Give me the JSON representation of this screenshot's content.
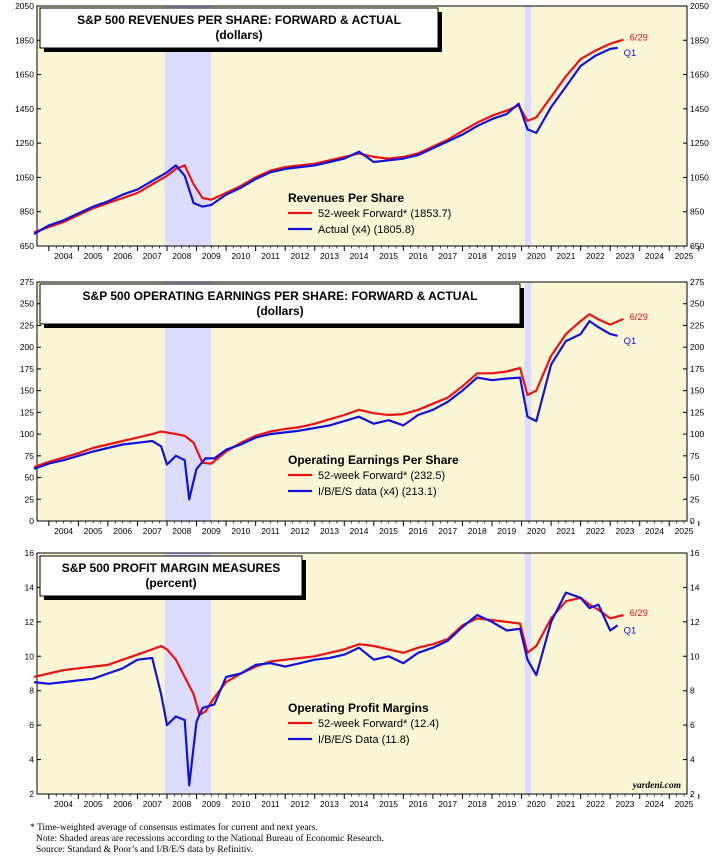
{
  "chart_data": [
    {
      "type": "line",
      "title": "S&P 500 REVENUES PER SHARE: FORWARD & ACTUAL",
      "subtitle": "(dollars)",
      "legend_title": "Revenues Per Share",
      "ylim": [
        650,
        2050
      ],
      "yticks": [
        650,
        850,
        1050,
        1250,
        1450,
        1650,
        1850,
        2050
      ],
      "recessions": [
        [
          2007.92,
          2009.5
        ],
        [
          2020.1,
          2020.33
        ]
      ],
      "end_label_top": "6/29",
      "end_label_bottom": "Q1",
      "series": [
        {
          "name": "52-week Forward* (1853.7)",
          "color": "#ee1111",
          "x": [
            2003.5,
            2004.0,
            2004.5,
            2005.0,
            2005.5,
            2006.0,
            2006.5,
            2007.0,
            2007.5,
            2008.0,
            2008.3,
            2008.6,
            2008.9,
            2009.2,
            2009.5,
            2010.0,
            2010.5,
            2011.0,
            2011.5,
            2012.0,
            2012.5,
            2013.0,
            2013.5,
            2014.0,
            2014.5,
            2015.0,
            2015.5,
            2016.0,
            2016.5,
            2017.0,
            2017.5,
            2018.0,
            2018.5,
            2019.0,
            2019.5,
            2019.9,
            2020.2,
            2020.5,
            2021.0,
            2021.5,
            2022.0,
            2022.5,
            2023.0,
            2023.45
          ],
          "values": [
            730,
            760,
            790,
            830,
            870,
            900,
            930,
            960,
            1010,
            1060,
            1100,
            1120,
            1010,
            930,
            920,
            960,
            1000,
            1050,
            1090,
            1110,
            1120,
            1130,
            1150,
            1170,
            1190,
            1170,
            1160,
            1170,
            1190,
            1230,
            1270,
            1320,
            1370,
            1410,
            1440,
            1470,
            1380,
            1400,
            1520,
            1640,
            1740,
            1790,
            1830,
            1853.7
          ]
        },
        {
          "name": "Actual (x4) (1805.8)",
          "color": "#1111dd",
          "x": [
            2003.5,
            2004.0,
            2004.5,
            2005.0,
            2005.5,
            2006.0,
            2006.5,
            2007.0,
            2007.5,
            2008.0,
            2008.3,
            2008.6,
            2008.9,
            2009.2,
            2009.5,
            2010.0,
            2010.5,
            2011.0,
            2011.5,
            2012.0,
            2012.5,
            2013.0,
            2013.5,
            2014.0,
            2014.5,
            2015.0,
            2015.5,
            2016.0,
            2016.5,
            2017.0,
            2017.5,
            2018.0,
            2018.5,
            2019.0,
            2019.5,
            2019.9,
            2020.2,
            2020.5,
            2021.0,
            2021.5,
            2022.0,
            2022.5,
            2023.0,
            2023.25
          ],
          "values": [
            720,
            770,
            800,
            840,
            880,
            910,
            950,
            980,
            1030,
            1080,
            1120,
            1060,
            900,
            880,
            890,
            950,
            990,
            1040,
            1080,
            1100,
            1110,
            1120,
            1140,
            1160,
            1200,
            1140,
            1150,
            1160,
            1180,
            1220,
            1260,
            1300,
            1350,
            1390,
            1420,
            1480,
            1330,
            1310,
            1460,
            1580,
            1700,
            1760,
            1800,
            1805.8
          ]
        }
      ]
    },
    {
      "type": "line",
      "title": "S&P 500 OPERATING EARNINGS PER SHARE: FORWARD & ACTUAL",
      "subtitle": "(dollars)",
      "legend_title": "Operating Earnings Per Share",
      "ylim": [
        0,
        275
      ],
      "yticks": [
        0,
        25,
        50,
        75,
        100,
        125,
        150,
        175,
        200,
        225,
        250,
        275
      ],
      "recessions": [
        [
          2007.92,
          2009.5
        ],
        [
          2020.1,
          2020.33
        ]
      ],
      "end_label_top": "6/29",
      "end_label_bottom": "Q1",
      "series": [
        {
          "name": "52-week Forward* (232.5)",
          "color": "#ee1111",
          "x": [
            2003.5,
            2004.0,
            2004.5,
            2005.0,
            2005.5,
            2006.0,
            2006.5,
            2007.0,
            2007.5,
            2007.8,
            2008.0,
            2008.3,
            2008.6,
            2008.9,
            2009.2,
            2009.5,
            2010.0,
            2010.5,
            2011.0,
            2011.5,
            2012.0,
            2012.5,
            2013.0,
            2013.5,
            2014.0,
            2014.5,
            2015.0,
            2015.5,
            2016.0,
            2016.5,
            2017.0,
            2017.5,
            2018.0,
            2018.5,
            2019.0,
            2019.5,
            2019.95,
            2020.2,
            2020.5,
            2021.0,
            2021.5,
            2022.0,
            2022.3,
            2022.6,
            2023.0,
            2023.45
          ],
          "values": [
            62,
            68,
            73,
            78,
            84,
            88,
            92,
            96,
            100,
            103,
            102,
            100,
            98,
            90,
            67,
            66,
            80,
            90,
            98,
            103,
            106,
            108,
            112,
            117,
            122,
            128,
            124,
            122,
            123,
            128,
            135,
            142,
            155,
            170,
            170,
            172,
            176,
            145,
            150,
            190,
            215,
            230,
            238,
            232,
            226,
            232.5
          ]
        },
        {
          "name": "I/B/E/S data (x4) (213.1)",
          "color": "#1111dd",
          "x": [
            2003.5,
            2004.0,
            2004.5,
            2005.0,
            2005.5,
            2006.0,
            2006.5,
            2007.0,
            2007.5,
            2007.8,
            2008.0,
            2008.3,
            2008.6,
            2008.75,
            2009.0,
            2009.3,
            2009.6,
            2010.0,
            2010.5,
            2011.0,
            2011.5,
            2012.0,
            2012.5,
            2013.0,
            2013.5,
            2014.0,
            2014.5,
            2015.0,
            2015.5,
            2016.0,
            2016.5,
            2017.0,
            2017.5,
            2018.0,
            2018.5,
            2019.0,
            2019.5,
            2019.95,
            2020.2,
            2020.5,
            2021.0,
            2021.5,
            2022.0,
            2022.3,
            2022.6,
            2023.0,
            2023.25
          ],
          "values": [
            60,
            66,
            70,
            75,
            80,
            84,
            88,
            90,
            92,
            86,
            65,
            75,
            70,
            25,
            60,
            72,
            72,
            82,
            88,
            96,
            100,
            102,
            104,
            107,
            110,
            115,
            120,
            112,
            116,
            110,
            122,
            128,
            137,
            150,
            165,
            162,
            164,
            165,
            120,
            115,
            180,
            207,
            215,
            230,
            223,
            215,
            213.1
          ]
        }
      ]
    },
    {
      "type": "line",
      "title": "S&P 500 PROFIT MARGIN MEASURES",
      "subtitle": "(percent)",
      "legend_title": "Operating Profit Margins",
      "ylim": [
        2,
        16
      ],
      "yticks": [
        2,
        4,
        6,
        8,
        10,
        12,
        14,
        16
      ],
      "recessions": [
        [
          2007.92,
          2009.5
        ],
        [
          2020.1,
          2020.33
        ]
      ],
      "end_label_top": "6/29",
      "end_label_bottom": "Q1",
      "watermark": "yardeni.com",
      "series": [
        {
          "name": "52-week Forward* (12.4)",
          "color": "#ee1111",
          "x": [
            2003.5,
            2004.0,
            2004.5,
            2005.0,
            2005.5,
            2006.0,
            2006.5,
            2007.0,
            2007.5,
            2007.8,
            2008.0,
            2008.3,
            2008.6,
            2008.9,
            2009.1,
            2009.3,
            2009.6,
            2010.0,
            2010.5,
            2011.0,
            2011.5,
            2012.0,
            2012.5,
            2013.0,
            2013.5,
            2014.0,
            2014.5,
            2015.0,
            2015.5,
            2016.0,
            2016.5,
            2017.0,
            2017.5,
            2018.0,
            2018.5,
            2019.0,
            2019.5,
            2019.95,
            2020.2,
            2020.5,
            2021.0,
            2021.5,
            2022.0,
            2022.3,
            2022.6,
            2023.0,
            2023.45
          ],
          "values": [
            8.8,
            9.0,
            9.2,
            9.3,
            9.4,
            9.5,
            9.8,
            10.1,
            10.4,
            10.6,
            10.4,
            9.8,
            8.8,
            7.8,
            6.6,
            6.8,
            7.6,
            8.5,
            9.0,
            9.4,
            9.7,
            9.8,
            9.9,
            10.0,
            10.2,
            10.4,
            10.7,
            10.6,
            10.4,
            10.2,
            10.5,
            10.7,
            11.0,
            11.8,
            12.2,
            12.1,
            12.0,
            11.9,
            10.2,
            10.6,
            12.2,
            13.2,
            13.4,
            13.0,
            12.7,
            12.2,
            12.4
          ]
        },
        {
          "name": "I/B/E/S Data (11.8)",
          "color": "#1111dd",
          "x": [
            2003.5,
            2004.0,
            2004.5,
            2005.0,
            2005.5,
            2006.0,
            2006.5,
            2007.0,
            2007.5,
            2007.8,
            2008.0,
            2008.3,
            2008.6,
            2008.75,
            2009.0,
            2009.2,
            2009.6,
            2010.0,
            2010.5,
            2011.0,
            2011.5,
            2012.0,
            2012.5,
            2013.0,
            2013.5,
            2014.0,
            2014.5,
            2015.0,
            2015.5,
            2016.0,
            2016.5,
            2017.0,
            2017.5,
            2018.0,
            2018.5,
            2019.0,
            2019.5,
            2019.95,
            2020.2,
            2020.5,
            2021.0,
            2021.5,
            2022.0,
            2022.3,
            2022.6,
            2023.0,
            2023.25
          ],
          "values": [
            8.5,
            8.4,
            8.5,
            8.6,
            8.7,
            9.0,
            9.3,
            9.8,
            9.9,
            7.8,
            6.0,
            6.5,
            6.3,
            2.5,
            6.2,
            7.0,
            7.2,
            8.8,
            9.0,
            9.5,
            9.6,
            9.4,
            9.6,
            9.8,
            9.9,
            10.1,
            10.5,
            9.8,
            10.0,
            9.6,
            10.2,
            10.5,
            10.9,
            11.7,
            12.4,
            12.0,
            11.5,
            11.6,
            9.8,
            8.9,
            12.0,
            13.7,
            13.4,
            12.8,
            13.0,
            11.5,
            11.8
          ]
        }
      ]
    }
  ],
  "x_axis": {
    "xlim": [
      2003.6,
      2025.6
    ],
    "year_labels": [
      "2004",
      "2005",
      "2006",
      "2007",
      "2008",
      "2009",
      "2010",
      "2011",
      "2012",
      "2013",
      "2014",
      "2015",
      "2016",
      "2017",
      "2018",
      "2019",
      "2020",
      "2021",
      "2022",
      "2023",
      "2024",
      "2025"
    ]
  },
  "colors": {
    "plot_background": "#fbf7d6",
    "recession_shade": "#dcdcff",
    "forward_line": "#ee1111",
    "actual_line": "#1111dd"
  },
  "footnotes": [
    "* Time-weighted average of consensus estimates for current and next years.",
    "Note: Shaded areas are recessions according to the National Bureau of Economic Research.",
    "Source: Standard & Poor’s and I/B/E/S data by Refinitiv."
  ]
}
